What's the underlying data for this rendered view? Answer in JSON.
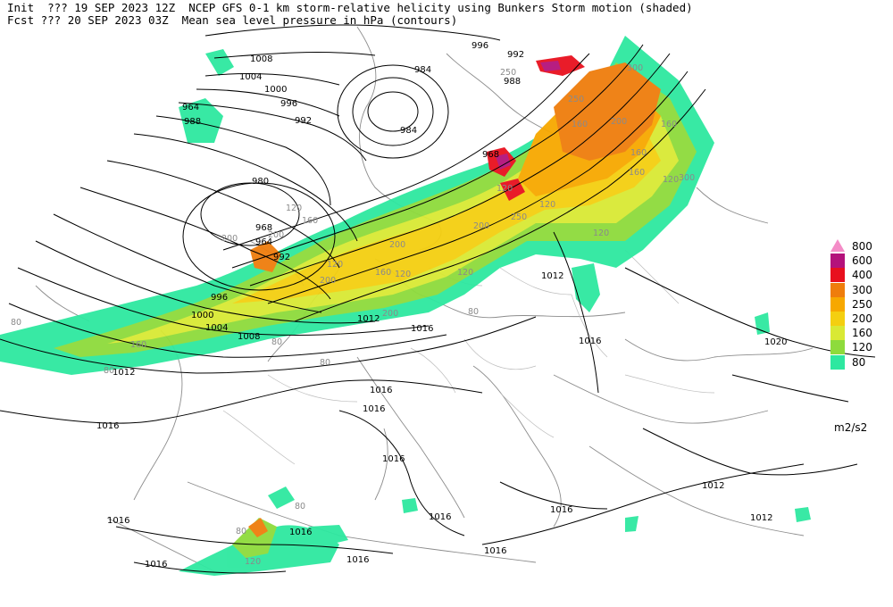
{
  "header": {
    "line1": "Init  ??? 19 SEP 2023 12Z  NCEP GFS 0-1 km storm-relative helicity using Bunkers Storm motion (shaded)",
    "line2": "Fcst ??? 20 SEP 2023 03Z  Mean sea level pressure in hPa (contours)"
  },
  "legend": {
    "units": "m2/s2",
    "levels": [
      {
        "label": "800",
        "color": "#f48cc7"
      },
      {
        "label": "600",
        "color": "#b4127b"
      },
      {
        "label": "400",
        "color": "#e8101e"
      },
      {
        "label": "300",
        "color": "#ef7d0c"
      },
      {
        "label": "250",
        "color": "#f7a800"
      },
      {
        "label": "200",
        "color": "#f4cf10"
      },
      {
        "label": "160",
        "color": "#d9e934"
      },
      {
        "label": "120",
        "color": "#8edb3c"
      },
      {
        "label": "80",
        "color": "#2ee8a0"
      }
    ]
  },
  "contour_labels": [
    "996",
    "992",
    "1008",
    "1004",
    "1000",
    "996",
    "992",
    "984",
    "988",
    "984",
    "968",
    "964",
    "988",
    "980",
    "968",
    "964",
    "992",
    "996",
    "1000",
    "1004",
    "1008",
    "1012",
    "1012",
    "1016",
    "1012",
    "1016",
    "1020",
    "1016",
    "1016",
    "1016",
    "1016",
    "1016",
    "1016",
    "1016",
    "1012",
    "1012",
    "1016",
    "1016",
    "1016",
    "1016"
  ],
  "shading_labels": [
    "250",
    "300",
    "250",
    "160",
    "160",
    "200",
    "250",
    "120",
    "120",
    "200",
    "300",
    "160",
    "120",
    "120",
    "160",
    "200",
    "200",
    "120",
    "160",
    "120",
    "120",
    "200",
    "160",
    "200",
    "120",
    "80",
    "80",
    "80",
    "80",
    "200",
    "160",
    "80",
    "120",
    "80",
    "80"
  ]
}
